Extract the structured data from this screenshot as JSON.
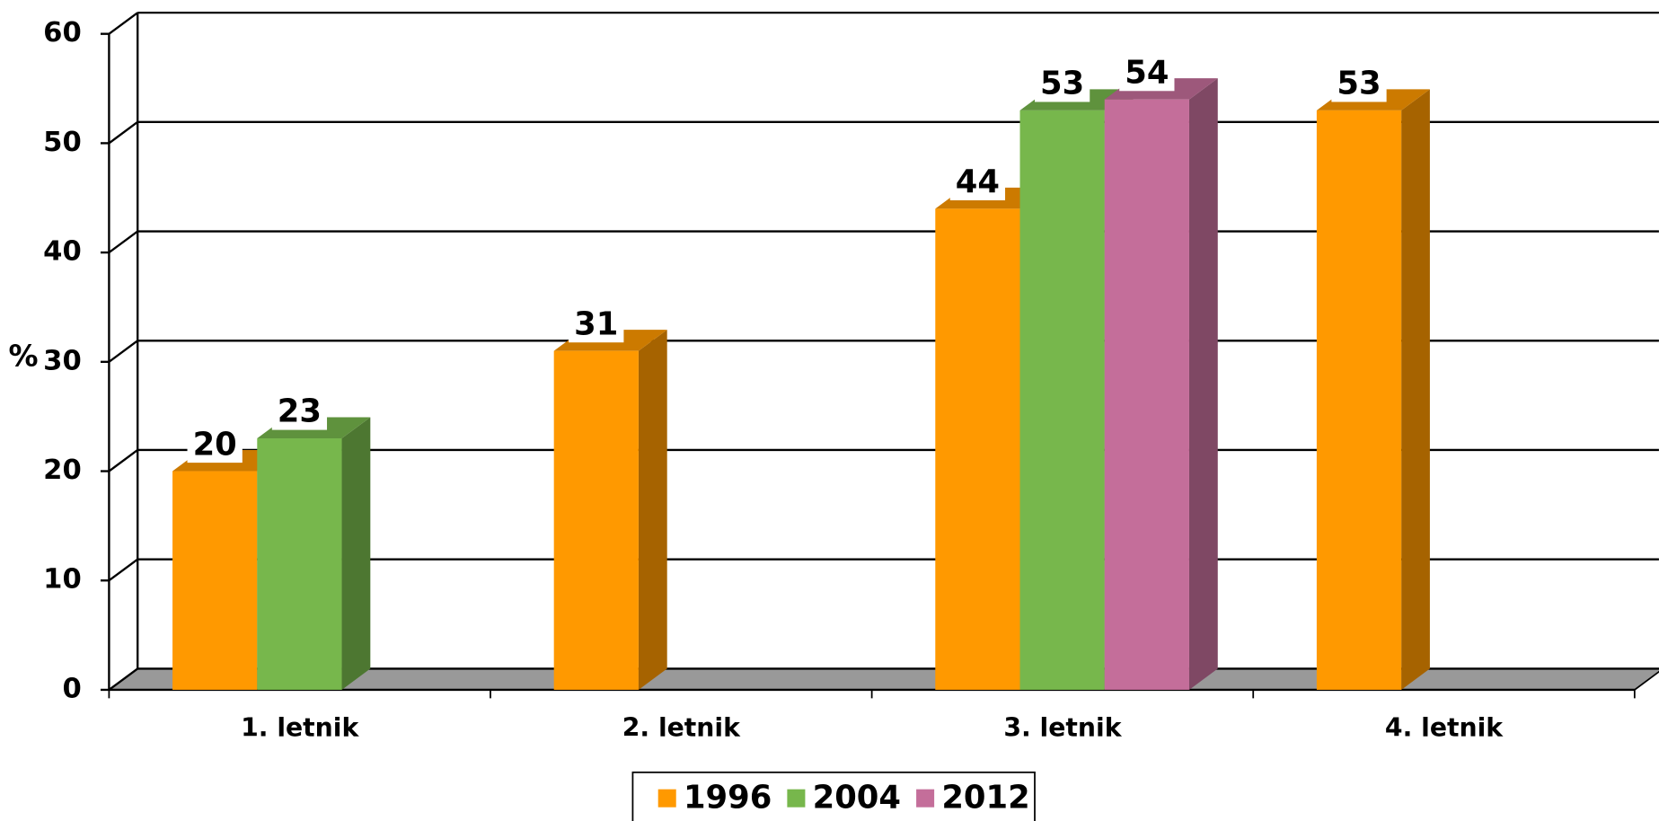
{
  "chart_data": {
    "type": "bar3d",
    "categories": [
      "1. letnik",
      "2. letnik",
      "3. letnik",
      "4. letnik"
    ],
    "series": [
      {
        "name": "1996",
        "color": "#FF9900",
        "values": [
          20,
          31,
          44,
          53
        ]
      },
      {
        "name": "2004",
        "color": "#77B74C",
        "values": [
          23,
          null,
          53,
          null
        ]
      },
      {
        "name": "2012",
        "color": "#C46E9A",
        "values": [
          null,
          null,
          54,
          null
        ]
      }
    ],
    "ylabel": "%",
    "ylim": [
      0,
      60
    ],
    "yticks": [
      0,
      10,
      20,
      30,
      40,
      50,
      60
    ],
    "grid": true
  }
}
